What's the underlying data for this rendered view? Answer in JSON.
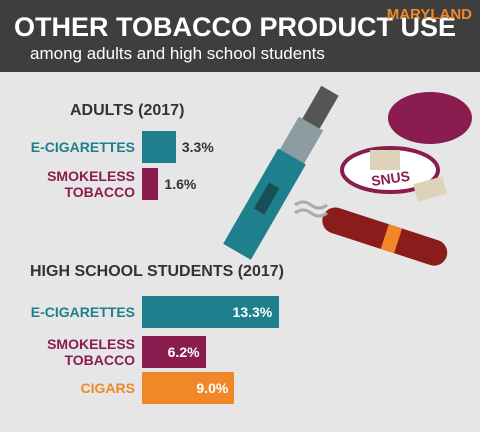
{
  "header": {
    "title": "OTHER TOBACCO PRODUCT USE",
    "subtitle": "among adults and high school students",
    "region": "MARYLAND"
  },
  "illustration": {
    "label": "SNUS"
  },
  "chart_data": [
    {
      "type": "bar",
      "title": "ADULTS (2017)",
      "categories": [
        "E-CIGARETTES",
        "SMOKELESS TOBACCO"
      ],
      "values": [
        3.3,
        1.6
      ],
      "value_labels": [
        "3.3%",
        "1.6%"
      ],
      "colors": [
        "#1f7f8c",
        "#8a1c4f"
      ],
      "xlim": [
        0,
        15
      ]
    },
    {
      "type": "bar",
      "title": "HIGH SCHOOL STUDENTS (2017)",
      "categories": [
        "E-CIGARETTES",
        "SMOKELESS TOBACCO",
        "CIGARS"
      ],
      "values": [
        13.3,
        6.2,
        9.0
      ],
      "value_labels": [
        "13.3%",
        "6.2%",
        "9.0%"
      ],
      "colors": [
        "#1f7f8c",
        "#8a1c4f",
        "#f0882a"
      ],
      "xlim": [
        0,
        15
      ]
    }
  ]
}
